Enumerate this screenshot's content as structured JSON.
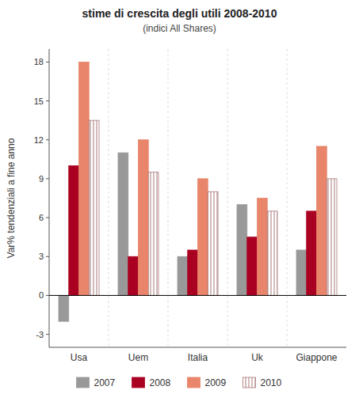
{
  "chart_data": {
    "type": "bar",
    "title": "stime di crescita degli utili 2008-2010",
    "subtitle": "(indici All Shares)",
    "ylabel": "Var% tendenziali a fine anno",
    "categories": [
      "Usa",
      "Uem",
      "Italia",
      "Uk",
      "Giappone"
    ],
    "series": [
      {
        "name": "2007",
        "color": "#999999",
        "values": [
          -2.0,
          11.0,
          3.0,
          7.0,
          3.5
        ]
      },
      {
        "name": "2008",
        "color": "#aa0022",
        "values": [
          10.0,
          3.0,
          3.5,
          4.5,
          6.5
        ]
      },
      {
        "name": "2009",
        "color": "#e8856a",
        "values": [
          18.0,
          12.0,
          9.0,
          7.5,
          11.5
        ]
      },
      {
        "name": "2010",
        "color": "#aa7777",
        "values": [
          13.5,
          9.5,
          8.0,
          6.5,
          9.0
        ]
      }
    ],
    "ylim": [
      -4,
      19
    ],
    "yticks": [
      -3,
      0,
      3,
      6,
      9,
      12,
      15,
      18
    ],
    "grid": false,
    "legend": "bottom"
  }
}
